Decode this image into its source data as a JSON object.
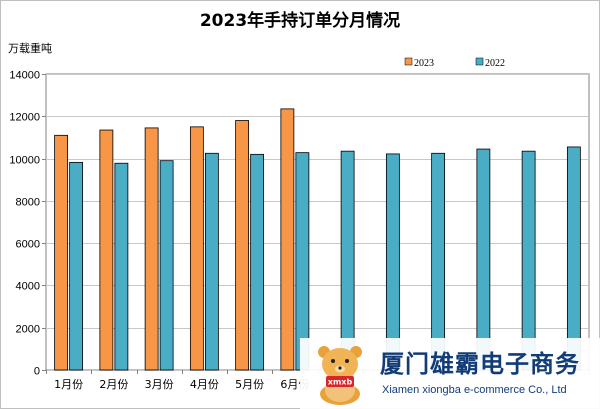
{
  "chart_data": {
    "type": "bar",
    "title": "2023年手持订单分月情况",
    "ylabel": "万载重吨",
    "ylim": [
      0,
      14000
    ],
    "yticks": [
      0,
      2000,
      4000,
      6000,
      8000,
      10000,
      12000,
      14000
    ],
    "categories": [
      "1月份",
      "2月份",
      "3月份",
      "4月份",
      "5月份",
      "6月份",
      "",
      "",
      "",
      "",
      "",
      ""
    ],
    "series": [
      {
        "name": "2023",
        "color": "#f79646",
        "values": [
          11100,
          11350,
          11450,
          11500,
          11800,
          12350,
          null,
          null,
          null,
          null,
          null,
          null
        ]
      },
      {
        "name": "2022",
        "color": "#4bacc6",
        "values": [
          9820,
          9780,
          9900,
          10250,
          10200,
          10280,
          10350,
          10220,
          10250,
          10450,
          10350,
          10550
        ]
      }
    ],
    "grid": true,
    "legend": "top-right"
  },
  "watermark": {
    "name": "厦门雄霸电子商务",
    "sub": "Xiamen xiongba e-commerce Co., Ltd",
    "logo_text": "xmxb",
    "logo_icon": "bear-mascot-icon"
  }
}
